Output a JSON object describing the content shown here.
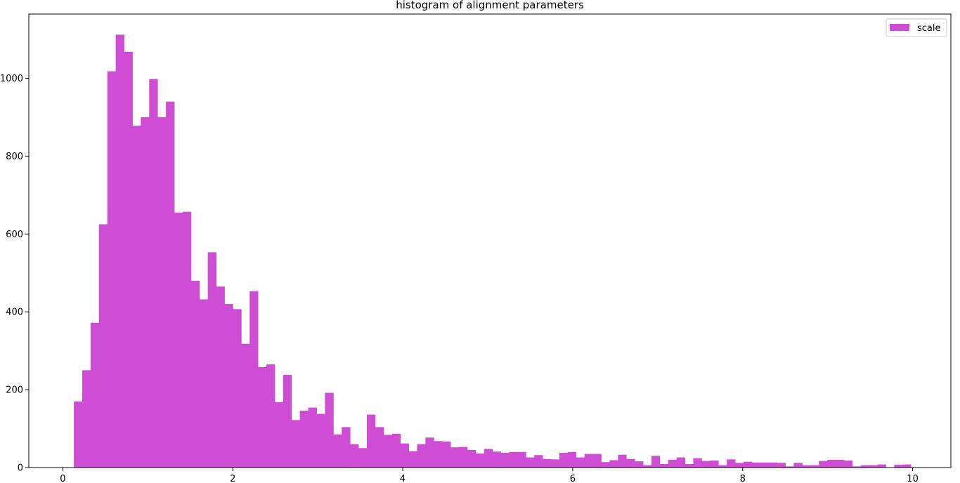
{
  "colors": {
    "bar": "#cf4cd4",
    "axis": "#000000",
    "background": "#ffffff"
  },
  "chart_data": {
    "type": "bar",
    "title": "histogram of alignment parameters",
    "xlabel": "",
    "ylabel": "",
    "xlim": [
      -0.4,
      10.45
    ],
    "ylim": [
      0,
      1165
    ],
    "x_ticks": [
      0,
      2,
      4,
      6,
      8,
      10
    ],
    "y_ticks": [
      0,
      200,
      400,
      600,
      800,
      1000
    ],
    "grid": false,
    "legend_position": "top-right",
    "bin_start": 0.13,
    "bin_width": 0.0985,
    "series": [
      {
        "name": "scale",
        "values": [
          170,
          250,
          372,
          625,
          1018,
          1112,
          1068,
          878,
          900,
          998,
          900,
          940,
          655,
          657,
          480,
          432,
          553,
          465,
          420,
          407,
          318,
          453,
          258,
          265,
          168,
          238,
          122,
          146,
          154,
          138,
          192,
          85,
          104,
          60,
          50,
          136,
          104,
          84,
          87,
          62,
          42,
          60,
          77,
          68,
          67,
          52,
          53,
          45,
          36,
          48,
          41,
          38,
          40,
          40,
          26,
          32,
          22,
          21,
          38,
          40,
          26,
          35,
          35,
          14,
          19,
          33,
          22,
          16,
          6,
          30,
          9,
          20,
          26,
          9,
          24,
          17,
          18,
          6,
          21,
          12,
          15,
          13,
          13,
          13,
          12,
          3,
          12,
          6,
          6,
          17,
          20,
          20,
          18,
          3,
          6,
          6,
          8,
          0,
          7,
          8
        ]
      }
    ]
  }
}
